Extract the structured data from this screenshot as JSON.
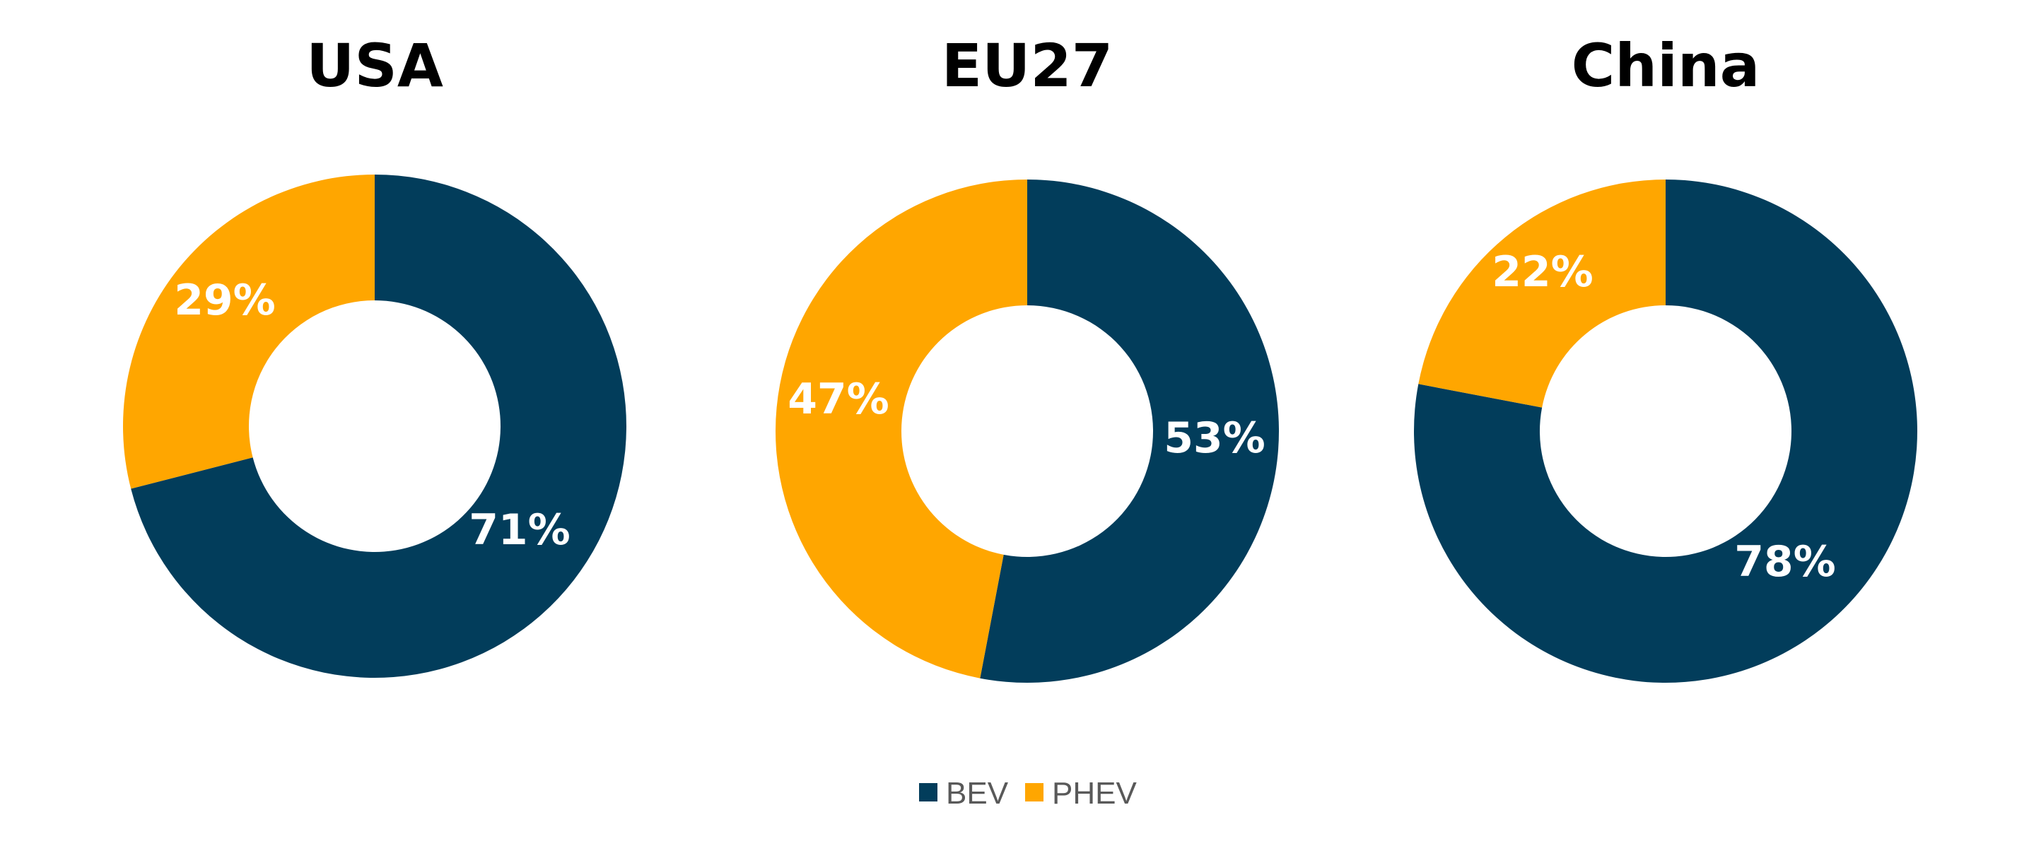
{
  "chart_data": [
    {
      "type": "pie",
      "title": "USA",
      "categories": [
        "BEV",
        "PHEV"
      ],
      "values": [
        71,
        29
      ],
      "labels": [
        "71%",
        "29%"
      ]
    },
    {
      "type": "pie",
      "title": "EU27",
      "categories": [
        "BEV",
        "PHEV"
      ],
      "values": [
        53,
        47
      ],
      "labels": [
        "53%",
        "47%"
      ]
    },
    {
      "type": "pie",
      "title": "China",
      "categories": [
        "BEV",
        "PHEV"
      ],
      "values": [
        78,
        22
      ],
      "labels": [
        "78%",
        "22%"
      ]
    }
  ],
  "legend": {
    "placement": "bottom",
    "items": [
      {
        "label": "BEV",
        "color": "#023D5B"
      },
      {
        "label": "PHEV",
        "color": "#FFA600"
      }
    ]
  },
  "colors": {
    "BEV": "#023D5B",
    "PHEV": "#FFA600"
  }
}
